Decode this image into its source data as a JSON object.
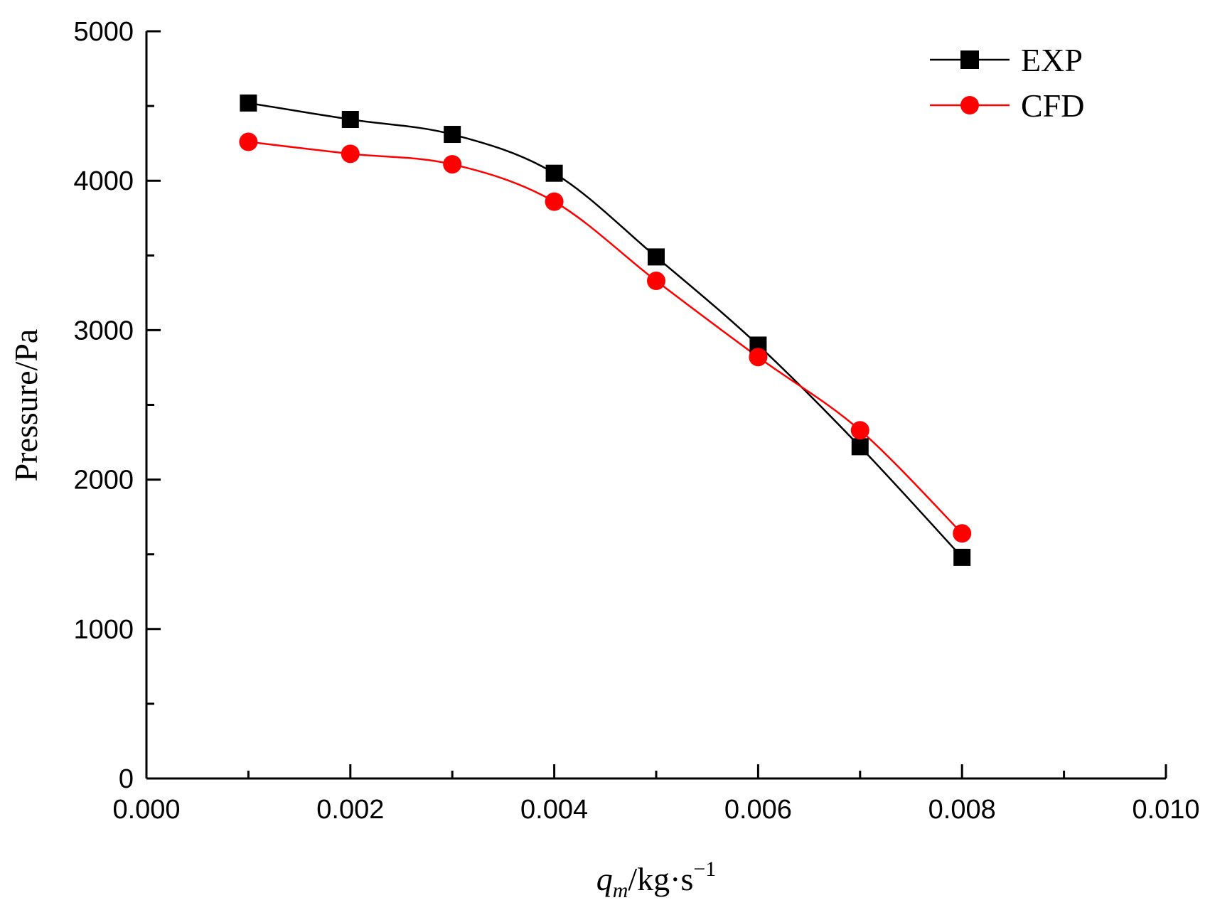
{
  "chart_data": {
    "type": "line",
    "title": "",
    "xlabel": {
      "var": "q",
      "sub": "m",
      "unit": "/kg·s",
      "sup": "−1"
    },
    "ylabel": "Pressure/Pa",
    "xlim": [
      0.0,
      0.01
    ],
    "ylim": [
      0,
      5000
    ],
    "x_ticks": [
      0.0,
      0.002,
      0.004,
      0.006,
      0.008,
      0.01
    ],
    "x_tick_labels": [
      "0.000",
      "0.002",
      "0.004",
      "0.006",
      "0.008",
      "0.010"
    ],
    "x_minor_ticks": [
      0.001,
      0.003,
      0.005,
      0.007,
      0.009
    ],
    "y_ticks": [
      0,
      1000,
      2000,
      3000,
      4000,
      5000
    ],
    "y_tick_labels": [
      "0",
      "1000",
      "2000",
      "3000",
      "4000",
      "5000"
    ],
    "y_minor_ticks": [
      500,
      1500,
      2500,
      3500,
      4500
    ],
    "grid": false,
    "legend_position": "top-right",
    "series": [
      {
        "name": "EXP",
        "color": "#000000",
        "marker": "square",
        "x": [
          0.001,
          0.002,
          0.003,
          0.004,
          0.005,
          0.006,
          0.007,
          0.008
        ],
        "values": [
          4520,
          4410,
          4310,
          4050,
          3490,
          2900,
          2220,
          1480
        ]
      },
      {
        "name": "CFD",
        "color": "#ff0000",
        "marker": "circle",
        "x": [
          0.001,
          0.002,
          0.003,
          0.004,
          0.005,
          0.006,
          0.007,
          0.008
        ],
        "values": [
          4260,
          4180,
          4110,
          3860,
          3330,
          2820,
          2330,
          1640
        ]
      }
    ]
  }
}
